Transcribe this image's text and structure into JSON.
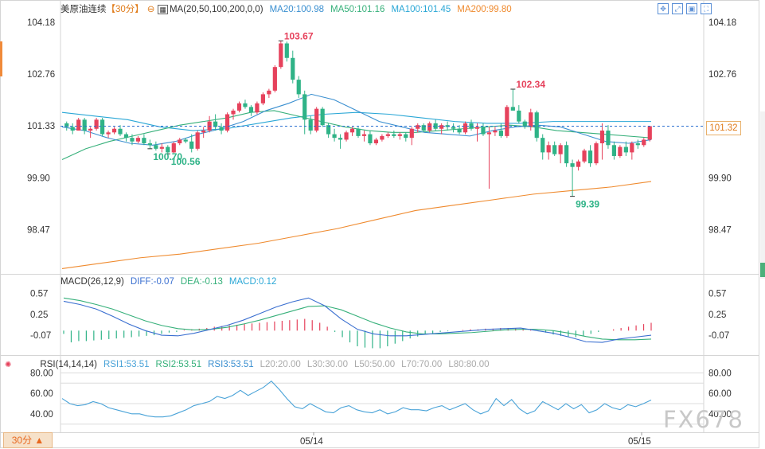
{
  "header": {
    "instrument": "美原油连续",
    "period_tag": "【30分】",
    "ma_label": "MA(20,50,100,200,0,0)",
    "ma20": "MA20:100.98",
    "ma50": "MA50:101.16",
    "ma100": "MA100:101.45",
    "ma200": "MA200:99.80"
  },
  "macd_header": {
    "title": "MACD(26,12,9)",
    "diff": "DIFF:-0.07",
    "dea": "DEA:-0.13",
    "macd": "MACD:0.12"
  },
  "rsi_header": {
    "title": "RSI(14,14,14)",
    "rsi1": "RSI1:53.51",
    "rsi2": "RSI2:53.51",
    "rsi3": "RSI3:53.51",
    "l20": "L20:20.00",
    "l30": "L30:30.00",
    "l50": "L50:50.00",
    "l70": "L70:70.00",
    "l80": "L80:80.00"
  },
  "period_button": "30分 ▲",
  "current_price": "101.32",
  "watermark": "FX678",
  "toolbar_icons": [
    "move-icon",
    "expand-icon",
    "fit-icon",
    "fullscreen-icon"
  ],
  "colors": {
    "up": "#e6425c",
    "down": "#2fb387",
    "ma20": "#3a8fd0",
    "ma50": "#36b07a",
    "ma100": "#2aa7d6",
    "ma200": "#ef8a2e",
    "diff": "#3a6fd0",
    "dea": "#36b07a",
    "rsi": "#4aa3d8"
  },
  "chart_data": [
    {
      "type": "candlestick",
      "title": "美原油连续",
      "period": "30分",
      "y_ticks": [
        "104.18",
        "102.76",
        "101.33",
        "99.90",
        "98.47"
      ],
      "ylim": [
        97.3,
        104.4
      ],
      "x_ticks": [
        "05/14",
        "05/15"
      ],
      "ohlc": [
        [
          101.4,
          101.45,
          101.2,
          101.3
        ],
        [
          101.3,
          101.4,
          101.1,
          101.2
        ],
        [
          101.2,
          101.55,
          101.2,
          101.5
        ],
        [
          101.5,
          101.55,
          101.1,
          101.2
        ],
        [
          101.2,
          101.3,
          101.0,
          101.25
        ],
        [
          101.25,
          101.55,
          101.2,
          101.5
        ],
        [
          101.5,
          101.55,
          101.05,
          101.1
        ],
        [
          101.1,
          101.2,
          101.0,
          101.15
        ],
        [
          101.15,
          101.3,
          101.1,
          101.25
        ],
        [
          101.25,
          101.35,
          101.05,
          101.1
        ],
        [
          101.1,
          101.15,
          100.9,
          101.0
        ],
        [
          101.0,
          101.1,
          100.8,
          100.9
        ],
        [
          100.9,
          101.05,
          100.85,
          101.0
        ],
        [
          101.0,
          101.1,
          100.8,
          100.85
        ],
        [
          100.85,
          100.95,
          100.7,
          100.8
        ],
        [
          100.8,
          100.9,
          100.65,
          100.7
        ],
        [
          100.7,
          100.85,
          100.6,
          100.75
        ],
        [
          100.75,
          100.8,
          100.56,
          100.6
        ],
        [
          100.6,
          100.9,
          100.58,
          100.85
        ],
        [
          100.85,
          101.0,
          100.8,
          100.95
        ],
        [
          100.95,
          101.0,
          100.85,
          100.9
        ],
        [
          100.9,
          101.1,
          100.6,
          100.7
        ],
        [
          100.7,
          101.2,
          100.65,
          101.15
        ],
        [
          101.15,
          101.3,
          101.0,
          101.2
        ],
        [
          101.2,
          101.6,
          101.15,
          101.45
        ],
        [
          101.45,
          101.65,
          101.2,
          101.3
        ],
        [
          101.3,
          101.4,
          101.1,
          101.2
        ],
        [
          101.2,
          101.7,
          101.15,
          101.65
        ],
        [
          101.65,
          101.8,
          101.5,
          101.75
        ],
        [
          101.75,
          102.0,
          101.7,
          101.95
        ],
        [
          101.95,
          102.05,
          101.8,
          101.85
        ],
        [
          101.85,
          101.9,
          101.6,
          101.7
        ],
        [
          101.7,
          102.0,
          101.65,
          101.95
        ],
        [
          101.95,
          102.25,
          101.9,
          102.2
        ],
        [
          102.2,
          102.35,
          102.1,
          102.3
        ],
        [
          102.3,
          103.0,
          102.25,
          102.95
        ],
        [
          102.95,
          103.67,
          102.9,
          103.6
        ],
        [
          103.6,
          103.65,
          103.1,
          103.2
        ],
        [
          103.2,
          103.4,
          102.5,
          102.6
        ],
        [
          102.6,
          102.7,
          102.1,
          102.2
        ],
        [
          102.2,
          102.3,
          101.1,
          101.5
        ],
        [
          101.5,
          101.6,
          101.1,
          101.2
        ],
        [
          101.2,
          101.85,
          101.15,
          101.8
        ],
        [
          101.8,
          101.85,
          101.3,
          101.35
        ],
        [
          101.35,
          101.4,
          101.0,
          101.1
        ],
        [
          101.1,
          101.25,
          100.9,
          101.0
        ],
        [
          101.0,
          101.1,
          100.7,
          100.95
        ],
        [
          100.95,
          101.2,
          100.9,
          101.15
        ],
        [
          101.15,
          101.3,
          101.05,
          101.25
        ],
        [
          101.25,
          101.3,
          101.0,
          101.05
        ],
        [
          101.05,
          101.2,
          100.9,
          101.1
        ],
        [
          101.1,
          101.2,
          100.8,
          100.85
        ],
        [
          100.85,
          101.0,
          100.8,
          100.95
        ],
        [
          100.95,
          101.1,
          100.9,
          101.05
        ],
        [
          101.05,
          101.15,
          101.0,
          101.1
        ],
        [
          101.1,
          101.2,
          101.0,
          101.05
        ],
        [
          101.05,
          101.15,
          100.95,
          101.1
        ],
        [
          101.1,
          101.15,
          100.9,
          101.0
        ],
        [
          101.0,
          101.3,
          100.8,
          101.25
        ],
        [
          101.25,
          101.4,
          101.15,
          101.35
        ],
        [
          101.35,
          101.4,
          101.15,
          101.2
        ],
        [
          101.2,
          101.45,
          101.15,
          101.4
        ],
        [
          101.4,
          101.5,
          101.2,
          101.25
        ],
        [
          101.25,
          101.4,
          101.1,
          101.35
        ],
        [
          101.35,
          101.45,
          101.2,
          101.3
        ],
        [
          101.3,
          101.4,
          101.15,
          101.25
        ],
        [
          101.25,
          101.35,
          101.1,
          101.15
        ],
        [
          101.15,
          101.45,
          101.1,
          101.4
        ],
        [
          101.4,
          101.5,
          101.2,
          101.25
        ],
        [
          101.25,
          101.4,
          100.9,
          101.3
        ],
        [
          101.3,
          101.4,
          101.05,
          101.1
        ],
        [
          101.1,
          101.3,
          99.6,
          101.15
        ],
        [
          101.15,
          101.3,
          101.05,
          101.2
        ],
        [
          101.2,
          101.4,
          101.0,
          101.05
        ],
        [
          101.05,
          101.9,
          101.0,
          101.85
        ],
        [
          101.85,
          102.34,
          101.75,
          101.75
        ],
        [
          101.75,
          101.9,
          101.4,
          101.45
        ],
        [
          101.45,
          101.5,
          101.25,
          101.3
        ],
        [
          101.3,
          101.8,
          101.2,
          101.7
        ],
        [
          101.7,
          101.75,
          100.9,
          101.0
        ],
        [
          101.0,
          101.1,
          100.4,
          100.6
        ],
        [
          100.6,
          100.9,
          100.4,
          100.8
        ],
        [
          100.8,
          100.9,
          100.5,
          100.55
        ],
        [
          100.55,
          100.85,
          100.3,
          100.8
        ],
        [
          100.8,
          100.9,
          100.2,
          100.3
        ],
        [
          100.3,
          100.4,
          99.39,
          100.2
        ],
        [
          100.2,
          100.4,
          100.1,
          100.35
        ],
        [
          100.35,
          100.7,
          100.3,
          100.65
        ],
        [
          100.65,
          100.8,
          100.2,
          100.3
        ],
        [
          100.3,
          100.9,
          100.25,
          100.85
        ],
        [
          100.85,
          101.4,
          100.4,
          101.2
        ],
        [
          101.2,
          101.35,
          100.7,
          100.8
        ],
        [
          100.8,
          100.9,
          100.4,
          100.5
        ],
        [
          100.5,
          100.8,
          100.45,
          100.75
        ],
        [
          100.75,
          100.9,
          100.5,
          100.6
        ],
        [
          100.6,
          100.9,
          100.4,
          100.85
        ],
        [
          100.85,
          100.95,
          100.7,
          100.8
        ],
        [
          100.8,
          101.0,
          100.75,
          100.95
        ],
        [
          100.95,
          101.32,
          100.9,
          101.32
        ]
      ],
      "ma20": [
        101.3,
        101.2,
        101.0,
        100.85,
        100.8,
        100.9,
        101.1,
        101.25,
        101.45,
        101.75,
        101.95,
        102.2,
        102.05,
        101.75,
        101.45,
        101.3,
        101.15,
        101.1,
        101.05,
        101.2,
        101.3,
        101.35,
        101.3,
        101.1,
        100.9,
        100.85,
        100.95
      ],
      "ma50": [
        100.4,
        100.7,
        100.9,
        101.05,
        101.2,
        101.35,
        101.45,
        101.55,
        101.7,
        101.75,
        101.6,
        101.45,
        101.3,
        101.2,
        101.15,
        101.15,
        101.2,
        101.25,
        101.3,
        101.35,
        101.3,
        101.2,
        101.15,
        101.1,
        101.05,
        101.0
      ],
      "ma100": [
        101.7,
        101.6,
        101.5,
        101.3,
        101.2,
        101.25,
        101.4,
        101.55,
        101.65,
        101.7,
        101.65,
        101.55,
        101.45,
        101.4,
        101.4,
        101.45,
        101.45,
        101.45,
        101.45
      ],
      "ma200": [
        97.4,
        97.55,
        97.7,
        97.8,
        97.95,
        98.1,
        98.3,
        98.5,
        98.75,
        99.0,
        99.15,
        99.3,
        99.45,
        99.55,
        99.65,
        99.8
      ],
      "annotations": [
        {
          "text": "103.67",
          "type": "high"
        },
        {
          "text": "102.34",
          "type": "high"
        },
        {
          "text": "100.56",
          "type": "low"
        },
        {
          "text": "100.70",
          "type": "low"
        },
        {
          "text": "99.39",
          "type": "low"
        }
      ],
      "current_price_line": 101.32
    },
    {
      "type": "macd",
      "title": "MACD(26,12,9)",
      "y_ticks": [
        "0.57",
        "0.25",
        "-0.07"
      ],
      "ylim": [
        -0.35,
        0.65
      ],
      "diff": [
        0.45,
        0.4,
        0.33,
        0.22,
        0.1,
        0.0,
        -0.07,
        -0.08,
        -0.04,
        0.02,
        0.08,
        0.16,
        0.26,
        0.36,
        0.44,
        0.5,
        0.38,
        0.18,
        0.02,
        -0.05,
        -0.08,
        -0.08,
        -0.06,
        -0.04,
        -0.02,
        0.0,
        0.02,
        0.03,
        0.04,
        0.0,
        -0.04,
        -0.1,
        -0.17,
        -0.18,
        -0.13,
        -0.1,
        -0.07
      ],
      "dea": [
        0.5,
        0.46,
        0.4,
        0.33,
        0.24,
        0.15,
        0.08,
        0.03,
        0.01,
        0.02,
        0.05,
        0.1,
        0.16,
        0.23,
        0.3,
        0.37,
        0.38,
        0.32,
        0.22,
        0.12,
        0.04,
        -0.02,
        -0.05,
        -0.05,
        -0.04,
        -0.03,
        -0.01,
        0.01,
        0.02,
        0.02,
        0.0,
        -0.04,
        -0.09,
        -0.13,
        -0.14,
        -0.14,
        -0.13
      ],
      "histogram": [
        -0.05,
        -0.18,
        -0.16,
        -0.16,
        -0.15,
        -0.14,
        -0.13,
        -0.12,
        -0.11,
        -0.1,
        -0.09,
        -0.08,
        -0.07,
        -0.05,
        -0.03,
        -0.02,
        0.01,
        0.02,
        0.03,
        0.04,
        0.06,
        0.07,
        0.08,
        0.09,
        0.1,
        0.11,
        0.12,
        0.13,
        0.14,
        0.15,
        0.16,
        0.17,
        0.18,
        0.16,
        0.12,
        0.06,
        -0.02,
        -0.1,
        -0.18,
        -0.24,
        -0.26,
        -0.27,
        -0.27,
        -0.24,
        -0.2,
        -0.16,
        -0.12,
        -0.09,
        -0.06,
        -0.04,
        -0.02,
        -0.01,
        0.0,
        0.01,
        0.02,
        0.02,
        0.03,
        0.03,
        0.04,
        0.04,
        0.04,
        0.03,
        0.02,
        -0.01,
        -0.03,
        -0.06,
        -0.08,
        -0.09,
        -0.1,
        -0.08,
        -0.05,
        -0.02,
        0.0,
        0.02,
        0.04,
        0.06,
        0.08,
        0.1,
        0.12
      ]
    },
    {
      "type": "line",
      "title": "RSI(14,14,14)",
      "y_ticks": [
        "80.00",
        "60.00",
        "40.00"
      ],
      "ylim": [
        22,
        85
      ],
      "reference_levels": [
        20,
        30,
        50,
        70,
        80
      ],
      "rsi": [
        55,
        50,
        48,
        49,
        52,
        50,
        46,
        44,
        42,
        40,
        40,
        38,
        37,
        37,
        38,
        41,
        44,
        48,
        50,
        52,
        57,
        55,
        58,
        63,
        58,
        62,
        66,
        72,
        64,
        55,
        47,
        45,
        50,
        46,
        42,
        41,
        46,
        48,
        44,
        42,
        41,
        44,
        40,
        42,
        46,
        44,
        44,
        43,
        46,
        48,
        44,
        47,
        50,
        44,
        40,
        43,
        55,
        48,
        54,
        45,
        40,
        43,
        52,
        48,
        44,
        50,
        45,
        49,
        41,
        44,
        50,
        46,
        44,
        49,
        47,
        50,
        53.5
      ]
    }
  ]
}
